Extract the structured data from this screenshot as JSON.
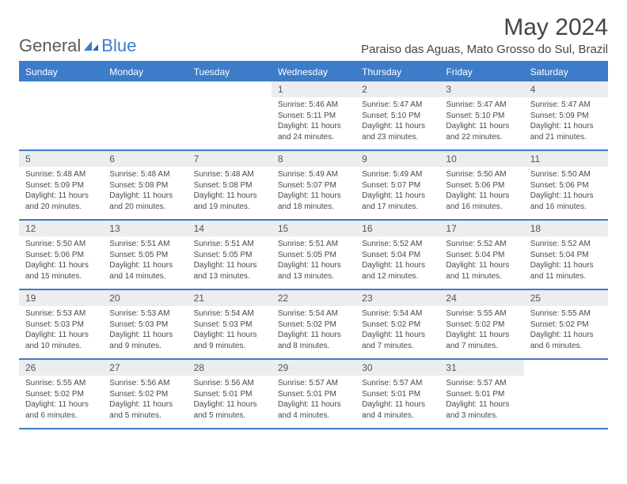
{
  "brand": {
    "word1": "General",
    "word2": "Blue"
  },
  "title": "May 2024",
  "location": "Paraiso das Aguas, Mato Grosso do Sul, Brazil",
  "colors": {
    "accent": "#3d7cc9",
    "headerText": "#ffffff",
    "bandBg": "#ebedee"
  },
  "dayNames": [
    "Sunday",
    "Monday",
    "Tuesday",
    "Wednesday",
    "Thursday",
    "Friday",
    "Saturday"
  ],
  "weeks": [
    [
      null,
      null,
      null,
      {
        "n": "1",
        "sr": "Sunrise: 5:46 AM",
        "ss": "Sunset: 5:11 PM",
        "dl": "Daylight: 11 hours and 24 minutes."
      },
      {
        "n": "2",
        "sr": "Sunrise: 5:47 AM",
        "ss": "Sunset: 5:10 PM",
        "dl": "Daylight: 11 hours and 23 minutes."
      },
      {
        "n": "3",
        "sr": "Sunrise: 5:47 AM",
        "ss": "Sunset: 5:10 PM",
        "dl": "Daylight: 11 hours and 22 minutes."
      },
      {
        "n": "4",
        "sr": "Sunrise: 5:47 AM",
        "ss": "Sunset: 5:09 PM",
        "dl": "Daylight: 11 hours and 21 minutes."
      }
    ],
    [
      {
        "n": "5",
        "sr": "Sunrise: 5:48 AM",
        "ss": "Sunset: 5:09 PM",
        "dl": "Daylight: 11 hours and 20 minutes."
      },
      {
        "n": "6",
        "sr": "Sunrise: 5:48 AM",
        "ss": "Sunset: 5:08 PM",
        "dl": "Daylight: 11 hours and 20 minutes."
      },
      {
        "n": "7",
        "sr": "Sunrise: 5:48 AM",
        "ss": "Sunset: 5:08 PM",
        "dl": "Daylight: 11 hours and 19 minutes."
      },
      {
        "n": "8",
        "sr": "Sunrise: 5:49 AM",
        "ss": "Sunset: 5:07 PM",
        "dl": "Daylight: 11 hours and 18 minutes."
      },
      {
        "n": "9",
        "sr": "Sunrise: 5:49 AM",
        "ss": "Sunset: 5:07 PM",
        "dl": "Daylight: 11 hours and 17 minutes."
      },
      {
        "n": "10",
        "sr": "Sunrise: 5:50 AM",
        "ss": "Sunset: 5:06 PM",
        "dl": "Daylight: 11 hours and 16 minutes."
      },
      {
        "n": "11",
        "sr": "Sunrise: 5:50 AM",
        "ss": "Sunset: 5:06 PM",
        "dl": "Daylight: 11 hours and 16 minutes."
      }
    ],
    [
      {
        "n": "12",
        "sr": "Sunrise: 5:50 AM",
        "ss": "Sunset: 5:06 PM",
        "dl": "Daylight: 11 hours and 15 minutes."
      },
      {
        "n": "13",
        "sr": "Sunrise: 5:51 AM",
        "ss": "Sunset: 5:05 PM",
        "dl": "Daylight: 11 hours and 14 minutes."
      },
      {
        "n": "14",
        "sr": "Sunrise: 5:51 AM",
        "ss": "Sunset: 5:05 PM",
        "dl": "Daylight: 11 hours and 13 minutes."
      },
      {
        "n": "15",
        "sr": "Sunrise: 5:51 AM",
        "ss": "Sunset: 5:05 PM",
        "dl": "Daylight: 11 hours and 13 minutes."
      },
      {
        "n": "16",
        "sr": "Sunrise: 5:52 AM",
        "ss": "Sunset: 5:04 PM",
        "dl": "Daylight: 11 hours and 12 minutes."
      },
      {
        "n": "17",
        "sr": "Sunrise: 5:52 AM",
        "ss": "Sunset: 5:04 PM",
        "dl": "Daylight: 11 hours and 11 minutes."
      },
      {
        "n": "18",
        "sr": "Sunrise: 5:52 AM",
        "ss": "Sunset: 5:04 PM",
        "dl": "Daylight: 11 hours and 11 minutes."
      }
    ],
    [
      {
        "n": "19",
        "sr": "Sunrise: 5:53 AM",
        "ss": "Sunset: 5:03 PM",
        "dl": "Daylight: 11 hours and 10 minutes."
      },
      {
        "n": "20",
        "sr": "Sunrise: 5:53 AM",
        "ss": "Sunset: 5:03 PM",
        "dl": "Daylight: 11 hours and 9 minutes."
      },
      {
        "n": "21",
        "sr": "Sunrise: 5:54 AM",
        "ss": "Sunset: 5:03 PM",
        "dl": "Daylight: 11 hours and 9 minutes."
      },
      {
        "n": "22",
        "sr": "Sunrise: 5:54 AM",
        "ss": "Sunset: 5:02 PM",
        "dl": "Daylight: 11 hours and 8 minutes."
      },
      {
        "n": "23",
        "sr": "Sunrise: 5:54 AM",
        "ss": "Sunset: 5:02 PM",
        "dl": "Daylight: 11 hours and 7 minutes."
      },
      {
        "n": "24",
        "sr": "Sunrise: 5:55 AM",
        "ss": "Sunset: 5:02 PM",
        "dl": "Daylight: 11 hours and 7 minutes."
      },
      {
        "n": "25",
        "sr": "Sunrise: 5:55 AM",
        "ss": "Sunset: 5:02 PM",
        "dl": "Daylight: 11 hours and 6 minutes."
      }
    ],
    [
      {
        "n": "26",
        "sr": "Sunrise: 5:55 AM",
        "ss": "Sunset: 5:02 PM",
        "dl": "Daylight: 11 hours and 6 minutes."
      },
      {
        "n": "27",
        "sr": "Sunrise: 5:56 AM",
        "ss": "Sunset: 5:02 PM",
        "dl": "Daylight: 11 hours and 5 minutes."
      },
      {
        "n": "28",
        "sr": "Sunrise: 5:56 AM",
        "ss": "Sunset: 5:01 PM",
        "dl": "Daylight: 11 hours and 5 minutes."
      },
      {
        "n": "29",
        "sr": "Sunrise: 5:57 AM",
        "ss": "Sunset: 5:01 PM",
        "dl": "Daylight: 11 hours and 4 minutes."
      },
      {
        "n": "30",
        "sr": "Sunrise: 5:57 AM",
        "ss": "Sunset: 5:01 PM",
        "dl": "Daylight: 11 hours and 4 minutes."
      },
      {
        "n": "31",
        "sr": "Sunrise: 5:57 AM",
        "ss": "Sunset: 5:01 PM",
        "dl": "Daylight: 11 hours and 3 minutes."
      },
      null
    ]
  ]
}
